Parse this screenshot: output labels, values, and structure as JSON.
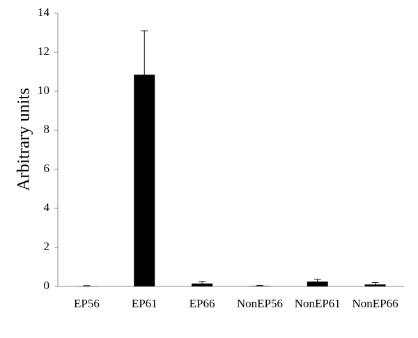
{
  "chart_data": {
    "type": "bar",
    "y_label": "Arbitrary units",
    "categories": [
      "EP56",
      "EP61",
      "EP66",
      "NonEP56",
      "NonEP61",
      "NonEP66"
    ],
    "values": [
      0.01,
      10.85,
      0.15,
      0.02,
      0.25,
      0.1
    ],
    "errors": [
      0.03,
      2.25,
      0.1,
      0.03,
      0.12,
      0.1
    ],
    "color": "#000000",
    "ylim": [
      0,
      14
    ],
    "yticks": [
      0,
      2,
      4,
      6,
      8,
      10,
      12,
      14
    ],
    "grid": false
  }
}
